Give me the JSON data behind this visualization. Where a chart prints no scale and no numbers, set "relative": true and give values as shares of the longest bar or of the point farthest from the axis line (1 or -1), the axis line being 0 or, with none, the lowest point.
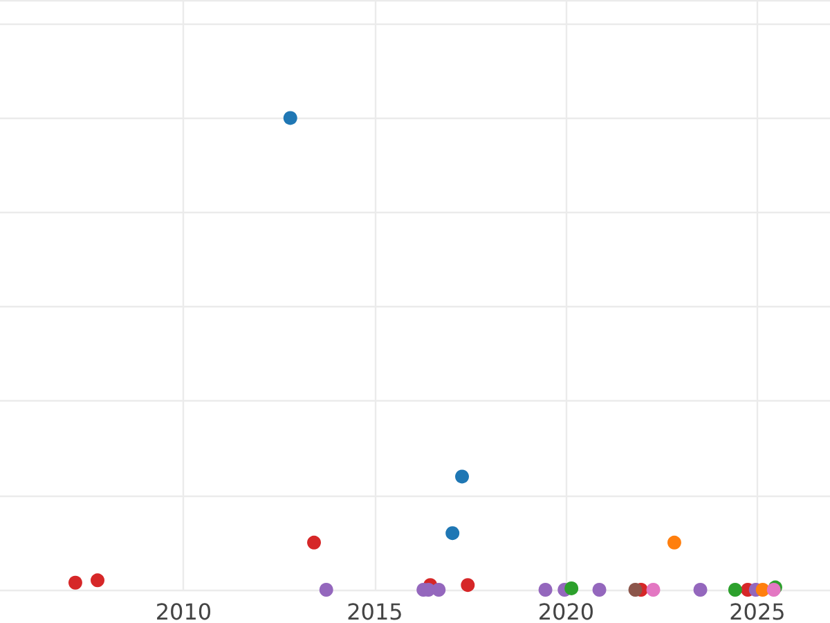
{
  "chart_data": {
    "type": "scatter",
    "relative": true,
    "xlim": [
      2005.2,
      2026.9
    ],
    "xticks": [
      2010,
      2015,
      2020,
      2025
    ],
    "grid": true,
    "marker": "circle",
    "tick_labels": "x",
    "series": [
      {
        "color": "#1f77b4",
        "x": [
          2012.79,
          2017.28,
          2017.03
        ],
        "values": [
          1,
          0.24,
          0.12
        ]
      },
      {
        "color": "#d62728",
        "x": [
          2007.17,
          2007.75,
          2013.41,
          2016.45,
          2017.43,
          2021.96,
          2024.75
        ],
        "values": [
          0.015,
          0.02,
          0.1,
          0.01,
          0.01,
          0,
          0
        ]
      },
      {
        "color": "#9467bd",
        "x": [
          2013.73,
          2016.27,
          2016.4,
          2016.67,
          2019.46,
          2019.96,
          2020.87,
          2023.51,
          2024.96
        ],
        "values": [
          0,
          0,
          0,
          0,
          0,
          0,
          0,
          0,
          0
        ]
      },
      {
        "color": "#2ca02c",
        "x": [
          2020.14,
          2024.42,
          2025.47
        ],
        "values": [
          0.003,
          0,
          0.005
        ]
      },
      {
        "color": "#ff7f0e",
        "x": [
          2022.83,
          2025.14
        ],
        "values": [
          0.1,
          0
        ]
      },
      {
        "color": "#8c564b",
        "x": [
          2021.81
        ],
        "values": [
          0
        ]
      },
      {
        "color": "#e377c2",
        "x": [
          2022.28,
          2025.43
        ],
        "values": [
          0,
          0
        ]
      }
    ]
  }
}
